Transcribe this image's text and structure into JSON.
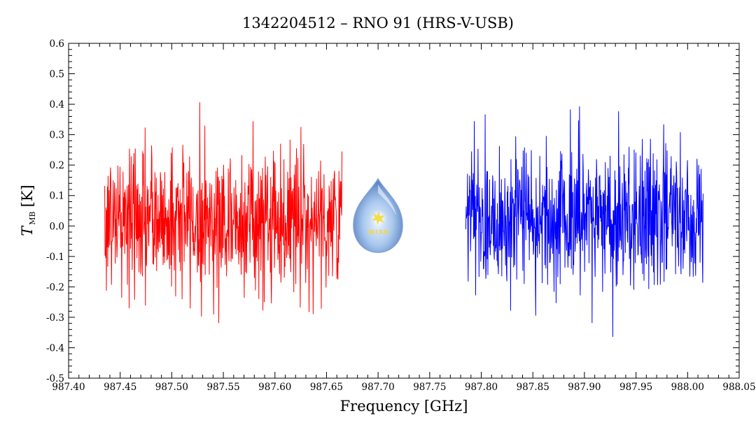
{
  "chart_data": {
    "type": "line",
    "title": "1342204512 – RNO 91 (HRS-V-USB)",
    "xlabel": "Frequency [GHz]",
    "ylabel": {
      "main": "T",
      "sub": "MB",
      "unit": "[K]"
    },
    "xlim": [
      987.4,
      988.05
    ],
    "ylim": [
      -0.5,
      0.6
    ],
    "x_ticks": [
      "987.40",
      "987.45",
      "987.50",
      "987.55",
      "987.60",
      "987.65",
      "987.70",
      "987.75",
      "987.80",
      "987.85",
      "987.90",
      "987.95",
      "988.00",
      "988.05"
    ],
    "y_ticks": [
      "-0.5",
      "-0.4",
      "-0.3",
      "-0.2",
      "-0.1",
      "0.0",
      "0.1",
      "0.2",
      "0.3",
      "0.4",
      "0.5",
      "0.6"
    ],
    "grid": false,
    "series": [
      {
        "color": "#ff0000",
        "x_start": 987.435,
        "x_end": 987.665,
        "mean": 0.02,
        "noise_sigma": 0.12,
        "n_points": 700
      },
      {
        "color": "#0000ff",
        "x_start": 987.785,
        "x_end": 988.015,
        "mean": 0.03,
        "noise_sigma": 0.12,
        "n_points": 700
      }
    ]
  },
  "logo": {
    "text": "WISH"
  }
}
